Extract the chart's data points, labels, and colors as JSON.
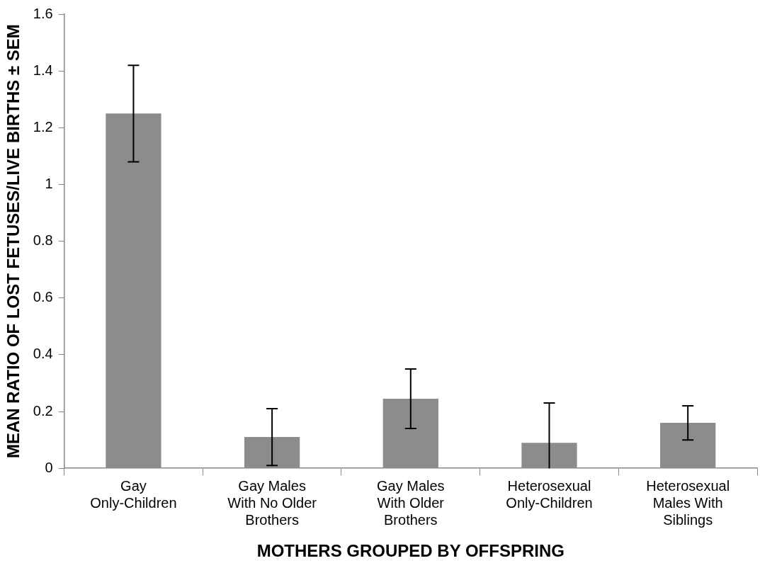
{
  "chart_data": {
    "type": "bar",
    "categories": [
      "Gay Only-Children",
      "Gay Males With No Older Brothers",
      "Gay Males With Older Brothers",
      "Heterosexual Only-Children",
      "Heterosexual Males With Siblings"
    ],
    "values": [
      1.25,
      0.11,
      0.245,
      0.09,
      0.16
    ],
    "errors": [
      [
        1.08,
        1.42
      ],
      [
        0.01,
        0.21
      ],
      [
        0.14,
        0.35
      ],
      [
        0,
        0.23
      ],
      [
        0.1,
        0.22
      ]
    ],
    "color": "#8c8c8c",
    "xlabel": "MOTHERS GROUPED BY OFFSPRING",
    "ylabel": "MEAN RATIO OF LOST FETUSES/LIVE BIRTHS ± SEM",
    "ylim": [
      0,
      1.6
    ],
    "yticks": [
      0,
      0.2,
      0.4,
      0.6,
      0.8,
      1,
      1.2,
      1.4,
      1.6
    ],
    "grid": false,
    "legend": false
  }
}
